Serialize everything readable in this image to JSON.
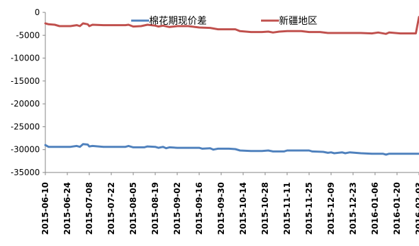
{
  "chart_data": {
    "type": "line",
    "title": "",
    "xlabel": "",
    "ylabel": "",
    "ylim": [
      -35000,
      0
    ],
    "yticks": [
      0,
      -5000,
      -10000,
      -15000,
      -20000,
      -25000,
      -30000,
      -35000
    ],
    "xtick_labels": [
      "2015-06-10",
      "2015-06-24",
      "2015-07-08",
      "2015-07-22",
      "2015-08-05",
      "2015-08-19",
      "2015-09-02",
      "2015-09-16",
      "2015-09-30",
      "2015-10-14",
      "2015-10-28",
      "2015-11-11",
      "2015-11-25",
      "2015-12-09",
      "2015-12-23",
      "2016-01-06",
      "2016-01-20",
      "2016-02-03"
    ],
    "grid": false,
    "legend_position": "top",
    "series": [
      {
        "name": "棉花期现价差",
        "color": "#4f81bd",
        "points": [
          [
            "2015-06-10",
            -29000
          ],
          [
            "2015-06-12",
            -29400
          ],
          [
            "2015-06-19",
            -29400
          ],
          [
            "2015-06-26",
            -29400
          ],
          [
            "2015-06-30",
            -29200
          ],
          [
            "2015-07-02",
            -29400
          ],
          [
            "2015-07-04",
            -28800
          ],
          [
            "2015-07-07",
            -28900
          ],
          [
            "2015-07-08",
            -29300
          ],
          [
            "2015-07-10",
            -29200
          ],
          [
            "2015-07-17",
            -29400
          ],
          [
            "2015-07-24",
            -29400
          ],
          [
            "2015-07-31",
            -29400
          ],
          [
            "2015-08-02",
            -29200
          ],
          [
            "2015-08-05",
            -29500
          ],
          [
            "2015-08-12",
            -29500
          ],
          [
            "2015-08-14",
            -29300
          ],
          [
            "2015-08-19",
            -29400
          ],
          [
            "2015-08-21",
            -29600
          ],
          [
            "2015-08-24",
            -29400
          ],
          [
            "2015-08-26",
            -29700
          ],
          [
            "2015-08-28",
            -29500
          ],
          [
            "2015-09-02",
            -29600
          ],
          [
            "2015-09-09",
            -29600
          ],
          [
            "2015-09-16",
            -29600
          ],
          [
            "2015-09-18",
            -29800
          ],
          [
            "2015-09-23",
            -29700
          ],
          [
            "2015-09-25",
            -30000
          ],
          [
            "2015-09-28",
            -29800
          ],
          [
            "2015-10-05",
            -29800
          ],
          [
            "2015-10-09",
            -29900
          ],
          [
            "2015-10-12",
            -30200
          ],
          [
            "2015-10-19",
            -30300
          ],
          [
            "2015-10-26",
            -30300
          ],
          [
            "2015-10-30",
            -30200
          ],
          [
            "2015-11-02",
            -30400
          ],
          [
            "2015-11-09",
            -30400
          ],
          [
            "2015-11-11",
            -30200
          ],
          [
            "2015-11-18",
            -30200
          ],
          [
            "2015-11-25",
            -30200
          ],
          [
            "2015-11-27",
            -30400
          ],
          [
            "2015-12-04",
            -30500
          ],
          [
            "2015-12-07",
            -30700
          ],
          [
            "2015-12-09",
            -30600
          ],
          [
            "2015-12-11",
            -30800
          ],
          [
            "2015-12-16",
            -30600
          ],
          [
            "2015-12-18",
            -30800
          ],
          [
            "2015-12-21",
            -30600
          ],
          [
            "2015-12-28",
            -30800
          ],
          [
            "2016-01-04",
            -30900
          ],
          [
            "2016-01-11",
            -30900
          ],
          [
            "2016-01-13",
            -31100
          ],
          [
            "2016-01-15",
            -30900
          ],
          [
            "2016-01-22",
            -30900
          ],
          [
            "2016-01-29",
            -30900
          ],
          [
            "2016-02-03",
            -30900
          ]
        ]
      },
      {
        "name": "新疆地区",
        "color": "#c0504d",
        "points": [
          [
            "2015-06-10",
            -2400
          ],
          [
            "2015-06-12",
            -2600
          ],
          [
            "2015-06-16",
            -2700
          ],
          [
            "2015-06-19",
            -3000
          ],
          [
            "2015-06-26",
            -3000
          ],
          [
            "2015-06-30",
            -2800
          ],
          [
            "2015-07-02",
            -3000
          ],
          [
            "2015-07-04",
            -2400
          ],
          [
            "2015-07-07",
            -2600
          ],
          [
            "2015-07-08",
            -3000
          ],
          [
            "2015-07-10",
            -2700
          ],
          [
            "2015-07-17",
            -2800
          ],
          [
            "2015-07-24",
            -2800
          ],
          [
            "2015-07-31",
            -2800
          ],
          [
            "2015-08-02",
            -2700
          ],
          [
            "2015-08-05",
            -3100
          ],
          [
            "2015-08-10",
            -3000
          ],
          [
            "2015-08-14",
            -2700
          ],
          [
            "2015-08-19",
            -2900
          ],
          [
            "2015-08-21",
            -3100
          ],
          [
            "2015-08-24",
            -2900
          ],
          [
            "2015-08-28",
            -3200
          ],
          [
            "2015-09-02",
            -3000
          ],
          [
            "2015-09-09",
            -3000
          ],
          [
            "2015-09-16",
            -3300
          ],
          [
            "2015-09-23",
            -3400
          ],
          [
            "2015-09-28",
            -3700
          ],
          [
            "2015-10-05",
            -3700
          ],
          [
            "2015-10-09",
            -3700
          ],
          [
            "2015-10-12",
            -4100
          ],
          [
            "2015-10-19",
            -4300
          ],
          [
            "2015-10-26",
            -4300
          ],
          [
            "2015-10-30",
            -4200
          ],
          [
            "2015-11-02",
            -4400
          ],
          [
            "2015-11-06",
            -4200
          ],
          [
            "2015-11-11",
            -4100
          ],
          [
            "2015-11-20",
            -4100
          ],
          [
            "2015-11-25",
            -4300
          ],
          [
            "2015-12-02",
            -4300
          ],
          [
            "2015-12-07",
            -4500
          ],
          [
            "2015-12-14",
            -4500
          ],
          [
            "2015-12-21",
            -4500
          ],
          [
            "2015-12-28",
            -4500
          ],
          [
            "2016-01-04",
            -4600
          ],
          [
            "2016-01-08",
            -4400
          ],
          [
            "2016-01-13",
            -4700
          ],
          [
            "2016-01-15",
            -4400
          ],
          [
            "2016-01-22",
            -4600
          ],
          [
            "2016-01-29",
            -4600
          ],
          [
            "2016-02-01",
            -4600
          ],
          [
            "2016-02-03",
            -1000
          ]
        ]
      }
    ]
  }
}
